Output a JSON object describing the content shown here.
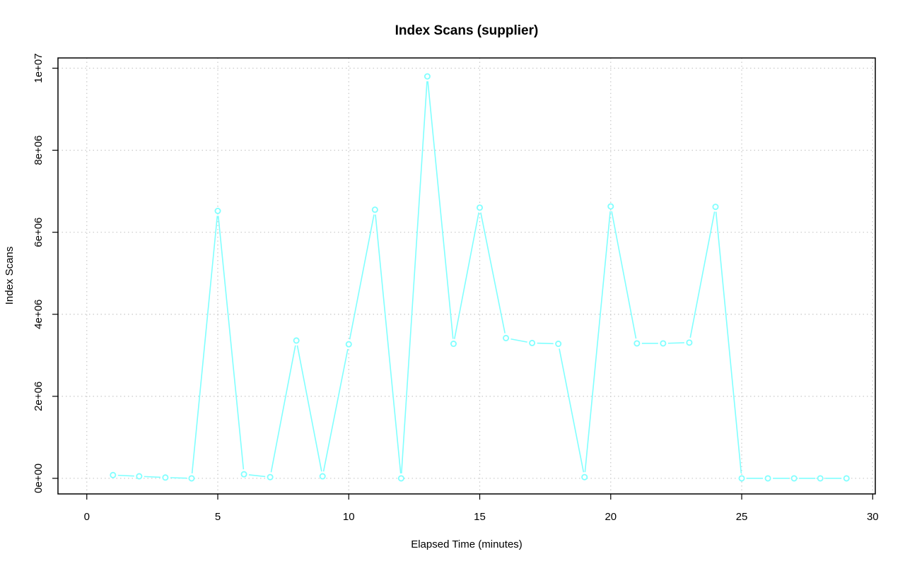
{
  "chart_data": {
    "type": "line",
    "title": "Index Scans (supplier)",
    "xlabel": "Elapsed Time (minutes)",
    "ylabel": "Index Scans",
    "xlim": [
      -1.1,
      30.1
    ],
    "ylim": [
      -380000,
      10250000
    ],
    "xticks": [
      0,
      5,
      10,
      15,
      20,
      25,
      30
    ],
    "xtick_labels": [
      "0",
      "5",
      "10",
      "15",
      "20",
      "25",
      "30"
    ],
    "yticks": [
      0,
      2000000,
      4000000,
      6000000,
      8000000,
      10000000
    ],
    "ytick_labels": [
      "0e+00",
      "2e+06",
      "4e+06",
      "6e+06",
      "8e+06",
      "1e+07"
    ],
    "grid": true,
    "series": [
      {
        "color": "#80ffff",
        "x": [
          1,
          2,
          3,
          4,
          5,
          6,
          7,
          8,
          9,
          10,
          11,
          12,
          13,
          14,
          15,
          16,
          17,
          18,
          19,
          20,
          21,
          22,
          23,
          24,
          25,
          26,
          27,
          28,
          29
        ],
        "values": [
          80000,
          50000,
          20000,
          0,
          6520000,
          100000,
          30000,
          3360000,
          50000,
          3270000,
          6550000,
          0,
          9800000,
          3280000,
          6600000,
          3420000,
          3300000,
          3280000,
          30000,
          6630000,
          3290000,
          3290000,
          3310000,
          6620000,
          0,
          0,
          0,
          0,
          0
        ]
      }
    ]
  }
}
